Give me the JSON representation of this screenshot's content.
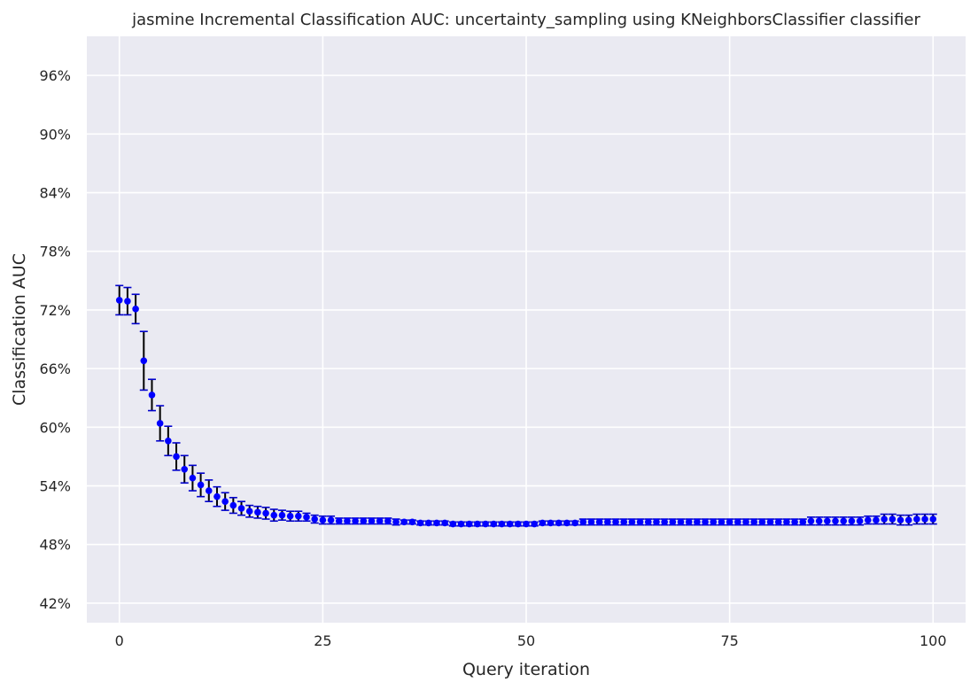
{
  "chart_data": {
    "type": "scatter",
    "title": "jasmine Incremental Classification AUC: uncertainty_sampling using KNeighborsClassifier classifier",
    "xlabel": "Query iteration",
    "ylabel": "Classification AUC",
    "xlim": [
      -4,
      104
    ],
    "ylim": [
      0.4,
      1.0
    ],
    "x_ticks": [
      0,
      25,
      50,
      75,
      100
    ],
    "x_tick_labels": [
      "0",
      "25",
      "50",
      "75",
      "100"
    ],
    "y_ticks": [
      0.42,
      0.48,
      0.54,
      0.6,
      0.66,
      0.72,
      0.78,
      0.84,
      0.9,
      0.96
    ],
    "y_tick_labels": [
      "42%",
      "48%",
      "54%",
      "60%",
      "66%",
      "72%",
      "78%",
      "84%",
      "90%",
      "96%"
    ],
    "grid": true,
    "marker_color": "#0000ff",
    "errorbar_color": "#000000",
    "cap_color": "#0000cc",
    "background_color": "#eaeaf2",
    "x": [
      0,
      1,
      2,
      3,
      4,
      5,
      6,
      7,
      8,
      9,
      10,
      11,
      12,
      13,
      14,
      15,
      16,
      17,
      18,
      19,
      20,
      21,
      22,
      23,
      24,
      25,
      26,
      27,
      28,
      29,
      30,
      31,
      32,
      33,
      34,
      35,
      36,
      37,
      38,
      39,
      40,
      41,
      42,
      43,
      44,
      45,
      46,
      47,
      48,
      49,
      50,
      51,
      52,
      53,
      54,
      55,
      56,
      57,
      58,
      59,
      60,
      61,
      62,
      63,
      64,
      65,
      66,
      67,
      68,
      69,
      70,
      71,
      72,
      73,
      74,
      75,
      76,
      77,
      78,
      79,
      80,
      81,
      82,
      83,
      84,
      85,
      86,
      87,
      88,
      89,
      90,
      91,
      92,
      93,
      94,
      95,
      96,
      97,
      98,
      99,
      100
    ],
    "y": [
      0.73,
      0.729,
      0.721,
      0.668,
      0.633,
      0.604,
      0.586,
      0.57,
      0.557,
      0.548,
      0.541,
      0.535,
      0.529,
      0.524,
      0.52,
      0.517,
      0.514,
      0.513,
      0.512,
      0.51,
      0.51,
      0.509,
      0.509,
      0.508,
      0.506,
      0.505,
      0.505,
      0.504,
      0.504,
      0.504,
      0.504,
      0.504,
      0.504,
      0.504,
      0.503,
      0.503,
      0.503,
      0.502,
      0.502,
      0.502,
      0.502,
      0.501,
      0.501,
      0.501,
      0.501,
      0.501,
      0.501,
      0.501,
      0.501,
      0.501,
      0.501,
      0.501,
      0.502,
      0.502,
      0.502,
      0.502,
      0.502,
      0.503,
      0.503,
      0.503,
      0.503,
      0.503,
      0.503,
      0.503,
      0.503,
      0.503,
      0.503,
      0.503,
      0.503,
      0.503,
      0.503,
      0.503,
      0.503,
      0.503,
      0.503,
      0.503,
      0.503,
      0.503,
      0.503,
      0.503,
      0.503,
      0.503,
      0.503,
      0.503,
      0.503,
      0.504,
      0.504,
      0.504,
      0.504,
      0.504,
      0.504,
      0.504,
      0.505,
      0.505,
      0.506,
      0.506,
      0.505,
      0.505,
      0.506,
      0.506,
      0.506
    ],
    "yerr": [
      0.015,
      0.014,
      0.015,
      0.03,
      0.016,
      0.018,
      0.015,
      0.014,
      0.014,
      0.013,
      0.012,
      0.011,
      0.01,
      0.009,
      0.008,
      0.007,
      0.006,
      0.006,
      0.006,
      0.006,
      0.005,
      0.005,
      0.005,
      0.004,
      0.004,
      0.004,
      0.004,
      0.003,
      0.003,
      0.003,
      0.003,
      0.003,
      0.003,
      0.003,
      0.003,
      0.002,
      0.002,
      0.002,
      0.002,
      0.002,
      0.002,
      0.002,
      0.002,
      0.002,
      0.002,
      0.002,
      0.002,
      0.002,
      0.002,
      0.002,
      0.002,
      0.002,
      0.002,
      0.002,
      0.002,
      0.002,
      0.002,
      0.003,
      0.003,
      0.003,
      0.003,
      0.003,
      0.003,
      0.003,
      0.003,
      0.003,
      0.003,
      0.003,
      0.003,
      0.003,
      0.003,
      0.003,
      0.003,
      0.003,
      0.003,
      0.003,
      0.003,
      0.003,
      0.003,
      0.003,
      0.003,
      0.003,
      0.003,
      0.003,
      0.003,
      0.004,
      0.004,
      0.004,
      0.004,
      0.004,
      0.004,
      0.004,
      0.004,
      0.004,
      0.005,
      0.005,
      0.005,
      0.005,
      0.005,
      0.005,
      0.005
    ]
  }
}
